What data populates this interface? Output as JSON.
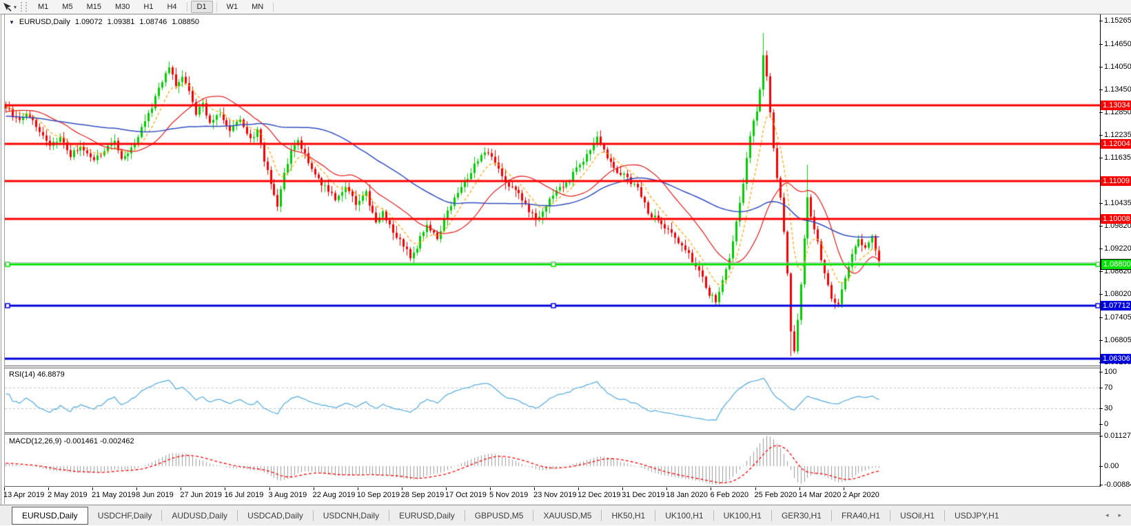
{
  "toolbar": {
    "tool_icon": "cursor-tool",
    "timeframes": [
      "M1",
      "M5",
      "M15",
      "M30",
      "H1",
      "H4",
      "D1",
      "W1",
      "MN"
    ],
    "active_timeframe": "D1"
  },
  "chart": {
    "symbol_period": "EURUSD,Daily",
    "open": "1.09072",
    "high": "1.09381",
    "low": "1.08746",
    "close": "1.08850"
  },
  "y_axis": {
    "ticks": [
      "1.15265",
      "1.14650",
      "1.14050",
      "1.13450",
      "1.12850",
      "1.12235",
      "1.11635",
      "1.10435",
      "1.09820",
      "1.09220",
      "1.08620",
      "1.08020",
      "1.07405",
      "1.06805",
      "1.06205"
    ]
  },
  "x_axis": {
    "dates": [
      "13 Apr 2019",
      "2 May 2019",
      "21 May 2019",
      "8 Jun 2019",
      "27 Jun 2019",
      "16 Jul 2019",
      "3 Aug 2019",
      "22 Aug 2019",
      "10 Sep 2019",
      "28 Sep 2019",
      "17 Oct 2019",
      "5 Nov 2019",
      "23 Nov 2019",
      "12 Dec 2019",
      "31 Dec 2019",
      "18 Jan 2020",
      "6 Feb 2020",
      "25 Feb 2020",
      "14 Mar 2020",
      "2 Apr 2020"
    ],
    "candles_per_label": 13
  },
  "rsi": {
    "label": "RSI(14) 46.8879",
    "period": 14,
    "value": 46.8879,
    "scale": [
      {
        "v": 100,
        "label": "100"
      },
      {
        "v": 70,
        "label": "70",
        "dashed": true
      },
      {
        "v": 30,
        "label": "30",
        "dashed": true
      },
      {
        "v": 0,
        "label": "0"
      }
    ],
    "line_color": "#4FA8DE"
  },
  "macd": {
    "label": "MACD(12,26,9) -0.001461 -0.002462",
    "fast": 12,
    "slow": 26,
    "signal": 9,
    "main_value": -0.001461,
    "signal_value": -0.002462,
    "scale": [
      {
        "v": 0.011277,
        "label": "0.011277"
      },
      {
        "v": 0,
        "label": "0.00"
      },
      {
        "v": -0.008845,
        "label": "-0.008845"
      }
    ],
    "hist_color": "#9a9a9a",
    "signal_color": "#FF0000"
  },
  "tabs": {
    "items": [
      "EURUSD,Daily",
      "USDCHF,Daily",
      "AUDUSD,Daily",
      "USDCAD,Daily",
      "USDCNH,Daily",
      "EURUSD,Daily",
      "GBPUSD,M5",
      "XAUUSD,M5",
      "HK50,H1",
      "UK100,H1",
      "UK100,H1",
      "GER30,H1",
      "FRA40,H1",
      "USOil,H1",
      "USDJPY,H1"
    ],
    "active_index": 0,
    "scroll_left": "◂",
    "scroll_right": "▸"
  },
  "chart_data": {
    "type": "candlestick",
    "symbol": "EURUSD",
    "timeframe": "Daily",
    "visible_candles": 258,
    "price_top": 1.1542,
    "price_bottom": 1.0612,
    "up_color": "#00CC00",
    "down_color": "#F40000",
    "close_keyframes": [
      [
        0,
        1.1298
      ],
      [
        3,
        1.1265
      ],
      [
        6,
        1.128
      ],
      [
        10,
        1.1235
      ],
      [
        13,
        1.1192
      ],
      [
        16,
        1.1215
      ],
      [
        19,
        1.117
      ],
      [
        22,
        1.1195
      ],
      [
        26,
        1.1158
      ],
      [
        29,
        1.1183
      ],
      [
        32,
        1.1207
      ],
      [
        34,
        1.1162
      ],
      [
        37,
        1.1185
      ],
      [
        40,
        1.124
      ],
      [
        43,
        1.13
      ],
      [
        46,
        1.137
      ],
      [
        48,
        1.1405
      ],
      [
        50,
        1.1352
      ],
      [
        52,
        1.138
      ],
      [
        54,
        1.134
      ],
      [
        56,
        1.128
      ],
      [
        58,
        1.1305
      ],
      [
        60,
        1.1255
      ],
      [
        63,
        1.128
      ],
      [
        66,
        1.124
      ],
      [
        69,
        1.126
      ],
      [
        72,
        1.1215
      ],
      [
        74,
        1.1235
      ],
      [
        76,
        1.116
      ],
      [
        78,
        1.11
      ],
      [
        80,
        1.104
      ],
      [
        82,
        1.112
      ],
      [
        84,
        1.1185
      ],
      [
        86,
        1.1205
      ],
      [
        88,
        1.117
      ],
      [
        91,
        1.112
      ],
      [
        94,
        1.1085
      ],
      [
        97,
        1.1055
      ],
      [
        100,
        1.109
      ],
      [
        103,
        1.104
      ],
      [
        106,
        1.107
      ],
      [
        109,
        1.099
      ],
      [
        111,
        1.1015
      ],
      [
        114,
        1.0965
      ],
      [
        117,
        1.093
      ],
      [
        119,
        1.09
      ],
      [
        121,
        1.0928
      ],
      [
        124,
        1.099
      ],
      [
        127,
        1.0952
      ],
      [
        130,
        1.1022
      ],
      [
        133,
        1.1068
      ],
      [
        136,
        1.1112
      ],
      [
        139,
        1.1158
      ],
      [
        142,
        1.1178
      ],
      [
        145,
        1.113
      ],
      [
        148,
        1.1088
      ],
      [
        151,
        1.1072
      ],
      [
        154,
        1.1018
      ],
      [
        157,
        1.1
      ],
      [
        160,
        1.1052
      ],
      [
        163,
        1.1082
      ],
      [
        166,
        1.1108
      ],
      [
        169,
        1.1148
      ],
      [
        172,
        1.1182
      ],
      [
        174,
        1.1225
      ],
      [
        177,
        1.1162
      ],
      [
        180,
        1.1128
      ],
      [
        183,
        1.1108
      ],
      [
        186,
        1.1082
      ],
      [
        189,
        1.1018
      ],
      [
        192,
        1.0998
      ],
      [
        195,
        1.0975
      ],
      [
        198,
        1.094
      ],
      [
        201,
        1.0905
      ],
      [
        204,
        1.0862
      ],
      [
        207,
        1.0802
      ],
      [
        209,
        1.0785
      ],
      [
        211,
        1.0832
      ],
      [
        213,
        1.0902
      ],
      [
        215,
        1.0992
      ],
      [
        217,
        1.1092
      ],
      [
        219,
        1.1222
      ],
      [
        221,
        1.1292
      ],
      [
        222,
        1.1338
      ],
      [
        223,
        1.1442
      ],
      [
        224,
        1.138
      ],
      [
        225,
        1.129
      ],
      [
        226,
        1.119
      ],
      [
        227,
        1.1112
      ],
      [
        228,
        1.1052
      ],
      [
        229,
        1.0962
      ],
      [
        230,
        1.0862
      ],
      [
        231,
        1.0702
      ],
      [
        232,
        1.0656
      ],
      [
        233,
        1.0732
      ],
      [
        234,
        1.0832
      ],
      [
        235,
        1.0952
      ],
      [
        236,
        1.1052
      ],
      [
        237,
        1.1005
      ],
      [
        239,
        1.0935
      ],
      [
        241,
        1.0852
      ],
      [
        243,
        1.079
      ],
      [
        245,
        1.0772
      ],
      [
        247,
        1.0845
      ],
      [
        249,
        1.0912
      ],
      [
        251,
        1.0948
      ],
      [
        253,
        1.092
      ],
      [
        255,
        1.095
      ],
      [
        257,
        1.0885
      ]
    ],
    "wick_overrides": {
      "223": {
        "high": 1.1495
      },
      "231": {
        "low": 1.0637
      },
      "232": {
        "low": 1.0645
      },
      "236": {
        "high": 1.1145
      }
    },
    "moving_averages": [
      {
        "period": 8,
        "method": "ema",
        "color": "#FFA200",
        "dash": [
          4,
          3
        ],
        "width": 1.2
      },
      {
        "period": 21,
        "method": "sma",
        "color": "#E02828",
        "dash": [],
        "width": 1.3
      },
      {
        "period": 55,
        "method": "sma",
        "color": "#2F4CC0",
        "dash": [],
        "width": 1.5
      }
    ],
    "horizontal_lines": [
      {
        "price": 1.13034,
        "label": "1.13034",
        "color": "#FF0000",
        "thickness": 3,
        "text_color": "#FFFFFF"
      },
      {
        "price": 1.12004,
        "label": "1.12004",
        "color": "#FF0000",
        "thickness": 3,
        "text_color": "#FFFFFF"
      },
      {
        "price": 1.11009,
        "label": "1.11009",
        "color": "#FF0000",
        "thickness": 3,
        "text_color": "#FFFFFF"
      },
      {
        "price": 1.10008,
        "label": "1.10008",
        "color": "#FF0000",
        "thickness": 3,
        "text_color": "#FFFFFF"
      },
      {
        "price": 1.088,
        "label": "1.08800",
        "color": "#00DF00",
        "thickness": 3,
        "text_color": "#FFFFFF",
        "border": "#000000",
        "handles": true
      },
      {
        "price": 1.07712,
        "label": "1.07712",
        "color": "#0000DD",
        "thickness": 3,
        "text_color": "#FFFFFF",
        "handles": true
      },
      {
        "price": 1.06306,
        "label": "1.06306",
        "color": "#0000DD",
        "thickness": 3,
        "text_color": "#FFFFFF"
      },
      {
        "price": 1.08862,
        "label": "",
        "color": "#BBBBBB",
        "thickness": 1,
        "no_label": true
      }
    ]
  }
}
